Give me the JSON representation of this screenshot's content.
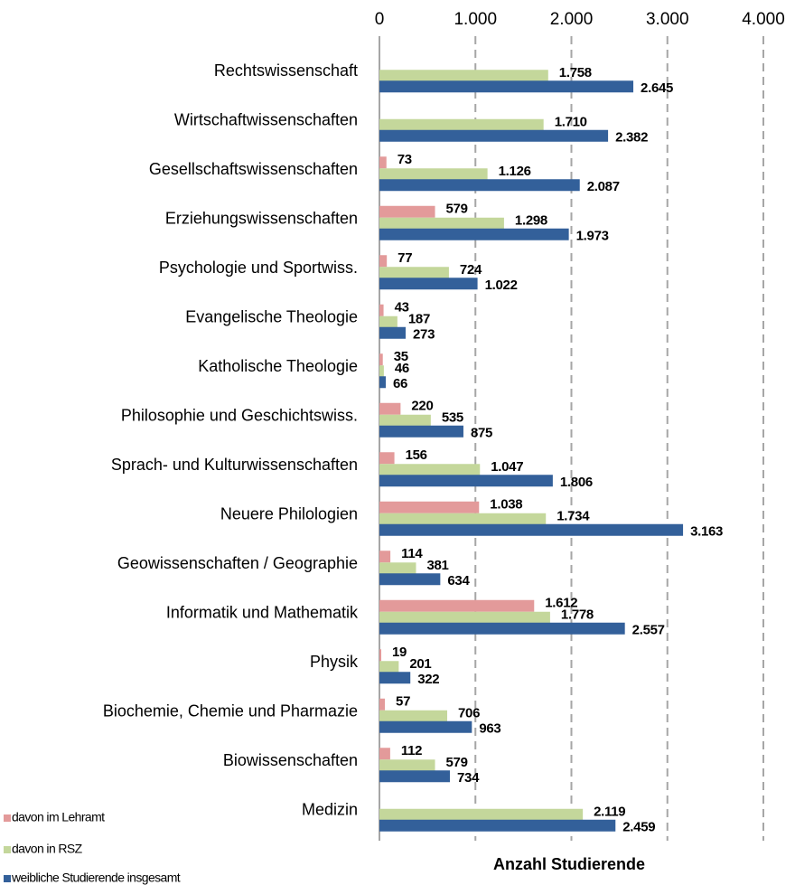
{
  "chart_data": {
    "type": "hbar",
    "xlabel": "Anzahl Studierende",
    "categories": [
      "Rechtswissenschaft",
      "Wirtschaftwissenschaften",
      "Gesellschaftswissenschaften",
      "Erziehungswissenschaften",
      "Psychologie und Sportwiss.",
      "Evangelische Theologie",
      "Katholische Theologie",
      "Philosophie und Geschichtswiss.",
      "Sprach- und Kulturwissenschaften",
      "Neuere Philologien",
      "Geowissenschaften / Geographie",
      "Informatik und Mathematik",
      "Physik",
      "Biochemie, Chemie und Pharmazie",
      "Biowissenschaften",
      "Medizin"
    ],
    "series": [
      {
        "name": "davon im Lehramt",
        "color": "#e39a9a",
        "values": [
          null,
          null,
          73,
          579,
          77,
          43,
          35,
          220,
          156,
          1038,
          114,
          1612,
          19,
          57,
          112,
          null
        ],
        "value_labels": [
          null,
          null,
          "73",
          "579",
          "77",
          "43",
          "35",
          "220",
          "156",
          "1.038",
          "114",
          "1.612",
          "19",
          "57",
          "112",
          null
        ]
      },
      {
        "name": "davon in RSZ",
        "color": "#c4d79b",
        "values": [
          1758,
          1710,
          1126,
          1298,
          724,
          187,
          46,
          535,
          1047,
          1734,
          381,
          1778,
          201,
          706,
          579,
          2119
        ],
        "value_labels": [
          "1.758",
          "1.710",
          "1.126",
          "1.298",
          "724",
          "187",
          "46",
          "535",
          "1.047",
          "1.734",
          "381",
          "1.778",
          "201",
          "706",
          "579",
          "2.119"
        ]
      },
      {
        "name": "weibliche Studierende insgesamt",
        "color": "#33609a",
        "values": [
          2645,
          2382,
          2087,
          1973,
          1022,
          273,
          66,
          875,
          1806,
          3163,
          634,
          2557,
          322,
          963,
          734,
          2459
        ],
        "value_labels": [
          "2.645",
          "2.382",
          "2.087",
          "1.973",
          "1.022",
          "273",
          "66",
          "875",
          "1.806",
          "3.163",
          "634",
          "2.557",
          "322",
          "963",
          "734",
          "2.459"
        ]
      }
    ],
    "xlim": [
      0,
      4000
    ],
    "xticks": [
      0,
      {
        "value": 1000,
        "label": "1.000"
      },
      {
        "value": 2000,
        "label": "2.000"
      },
      {
        "value": 3000,
        "label": "3.000"
      },
      {
        "value": 4000,
        "label": "4.000"
      }
    ],
    "grid": true,
    "legend": "lower left"
  }
}
